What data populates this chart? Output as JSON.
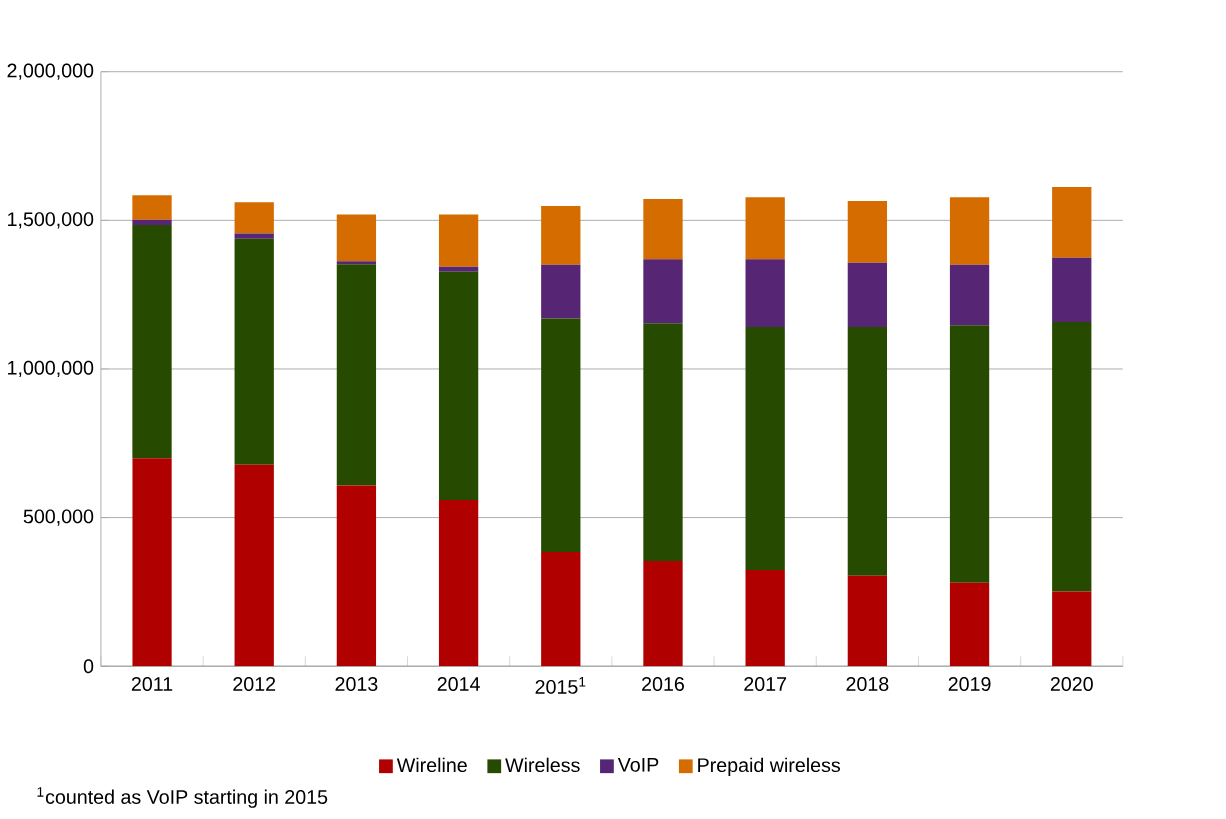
{
  "chart_data": {
    "type": "bar",
    "stacked": true,
    "categories": [
      "2011",
      "2012",
      "2013",
      "2014",
      "2015$^{1}$",
      "2016",
      "2017",
      "2018",
      "2019",
      "2020"
    ],
    "series": [
      {
        "name": "Wireline",
        "color": "#b00000",
        "values": [
          700000,
          678000,
          608000,
          559000,
          384000,
          354000,
          324000,
          304000,
          281000,
          251000
        ]
      },
      {
        "name": "Wireless",
        "color": "#264b00",
        "values": [
          784000,
          760000,
          744000,
          768000,
          786000,
          800000,
          817000,
          837000,
          866000,
          907000
        ]
      },
      {
        "name": "VoIP",
        "color": "#562573",
        "values": [
          18000,
          18000,
          10000,
          17000,
          181000,
          215000,
          228000,
          216000,
          204000,
          216000
        ]
      },
      {
        "name": "Prepaid wireless",
        "color": "#d46c00",
        "values": [
          82000,
          105000,
          158000,
          176000,
          197000,
          203000,
          209000,
          208000,
          227000,
          238000
        ]
      }
    ],
    "ylim": [
      0,
      2000000
    ],
    "yticks": [
      {
        "value": 0,
        "label": "0"
      },
      {
        "value": 500000,
        "label": "500,000"
      },
      {
        "value": 1000000,
        "label": "1,000,000"
      },
      {
        "value": 1500000,
        "label": "1,500,000"
      },
      {
        "value": 2000000,
        "label": "2,000,000"
      }
    ],
    "grid": "y",
    "legend": "bottom",
    "annotations": [
      "$^{1}$counted as VoIP starting in 2015"
    ]
  }
}
